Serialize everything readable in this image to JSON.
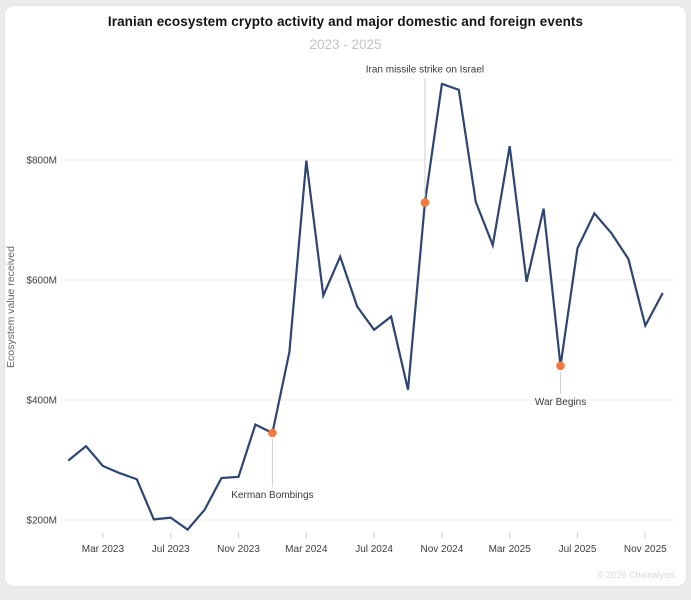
{
  "page": {
    "watermark": "© 2026 Chainalysis"
  },
  "chart_data": {
    "type": "line",
    "title": "Iranian ecosystem crypto activity and major domestic and foreign events",
    "subtitle": "2023 - 2025",
    "ylabel": "Ecosystem value received",
    "xlabel": "",
    "unit": "USD millions",
    "grid": "horizontal-only",
    "legend": "none",
    "ylim": [
      150,
      950
    ],
    "x": [
      "Jan 2023",
      "Feb 2023",
      "Mar 2023",
      "Apr 2023",
      "May 2023",
      "Jun 2023",
      "Jul 2023",
      "Aug 2023",
      "Sep 2023",
      "Oct 2023",
      "Nov 2023",
      "Dec 2023",
      "Jan 2024",
      "Feb 2024",
      "Mar 2024",
      "Apr 2024",
      "May 2024",
      "Jun 2024",
      "Jul 2024",
      "Aug 2024",
      "Sep 2024",
      "Oct 2024",
      "Nov 2024",
      "Dec 2024",
      "Jan 2025",
      "Feb 2025",
      "Mar 2025",
      "Apr 2025",
      "May 2025",
      "Jun 2025",
      "Jul 2025",
      "Aug 2025",
      "Sep 2025",
      "Oct 2025",
      "Nov 2025",
      "Dec 2025"
    ],
    "series": [
      {
        "name": "Ecosystem value received ($M)",
        "values": [
          300,
          323,
          290,
          278,
          268,
          201,
          204,
          184,
          217,
          270,
          272,
          359,
          345,
          480,
          799,
          574,
          639,
          556,
          517,
          539,
          417,
          729,
          927,
          917,
          730,
          658,
          823,
          597,
          719,
          457,
          653,
          711,
          678,
          635,
          524,
          577
        ]
      }
    ],
    "y_ticks": [
      {
        "value": 200,
        "label": "$200M"
      },
      {
        "value": 400,
        "label": "$400M"
      },
      {
        "value": 600,
        "label": "$600M"
      },
      {
        "value": 800,
        "label": "$800M"
      }
    ],
    "x_ticks": [
      {
        "index": 2,
        "label": "Mar 2023"
      },
      {
        "index": 6,
        "label": "Jul 2023"
      },
      {
        "index": 10,
        "label": "Nov 2023"
      },
      {
        "index": 14,
        "label": "Mar 2024"
      },
      {
        "index": 18,
        "label": "Jul 2024"
      },
      {
        "index": 22,
        "label": "Nov 2024"
      },
      {
        "index": 26,
        "label": "Mar 2025"
      },
      {
        "index": 30,
        "label": "Jul 2025"
      },
      {
        "index": 34,
        "label": "Nov 2025"
      }
    ],
    "annotations": [
      {
        "label": "Kerman Bombings",
        "month": "Jan 2024",
        "index": 12,
        "value": 345,
        "side": "below",
        "connector_len": 48
      },
      {
        "label": "Iran missile strike on Israel",
        "month": "Oct 2024",
        "index": 21,
        "value": 729,
        "side": "above",
        "connector_len": 118
      },
      {
        "label": "War Begins",
        "month": "Jun 2025",
        "index": 29,
        "value": 457,
        "side": "below",
        "connector_len": 22
      }
    ],
    "colors": {
      "line": "#2E4571",
      "event_dot": "#F5793B",
      "grid": "#EDEDED",
      "tick_text": "#3D3D3D",
      "annotation_text": "#3A3A3A",
      "connector": "#CFCFCF",
      "axis_title": "#666666"
    }
  }
}
